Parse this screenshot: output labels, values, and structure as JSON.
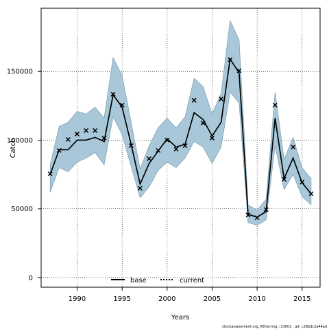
{
  "chart_data": {
    "type": "line",
    "xlabel": "Years",
    "ylabel": "Catch",
    "xlim": [
      1986,
      2017
    ],
    "ylim": [
      -7000,
      196000
    ],
    "x_ticks": [
      1990,
      1995,
      2000,
      2005,
      2010,
      2015
    ],
    "y_ticks": [
      0,
      50000,
      100000,
      150000
    ],
    "grid": "dotted, major ticks",
    "legend_position": "bottom-center",
    "colors": {
      "band": "#a8c8d9",
      "band_edge": "#7a9aaa",
      "line": "#000000",
      "marker": "#000000"
    },
    "x": [
      1987,
      1988,
      1989,
      1990,
      1991,
      1992,
      1993,
      1994,
      1995,
      1996,
      1997,
      1998,
      1999,
      2000,
      2001,
      2002,
      2003,
      2004,
      2005,
      2006,
      2007,
      2008,
      2009,
      2010,
      2011,
      2012,
      2013,
      2014,
      2015,
      2016
    ],
    "series": [
      {
        "name": "base",
        "line_style": "solid",
        "values": [
          75000,
          93000,
          93000,
          100000,
          100000,
          102000,
          99000,
          133000,
          124000,
          97000,
          68000,
          83000,
          92000,
          101000,
          95000,
          97000,
          120000,
          115000,
          103000,
          113000,
          159000,
          149000,
          46000,
          44000,
          48000,
          116000,
          72000,
          87000,
          69000,
          61000
        ]
      },
      {
        "name": "current",
        "line_style": "dotted",
        "values": [
          75000,
          93000,
          93000,
          100000,
          100000,
          102000,
          99000,
          133000,
          124000,
          97000,
          68000,
          83000,
          92000,
          101000,
          95000,
          97000,
          120000,
          115000,
          103000,
          113000,
          159000,
          149000,
          46000,
          44000,
          48000,
          116000,
          72000,
          87000,
          69000,
          61000
        ]
      }
    ],
    "band": {
      "upper": [
        82000,
        110000,
        113000,
        121000,
        119000,
        124000,
        116000,
        160000,
        147000,
        113000,
        79000,
        96000,
        109000,
        116000,
        109000,
        117000,
        145000,
        139000,
        119000,
        134000,
        187000,
        173000,
        53000,
        49000,
        57000,
        135000,
        86000,
        102000,
        80000,
        72000
      ],
      "lower": [
        62000,
        80000,
        77000,
        84000,
        87000,
        91000,
        82000,
        117000,
        104000,
        81000,
        58000,
        66000,
        78000,
        84000,
        80000,
        87000,
        99000,
        95000,
        83000,
        95000,
        135000,
        127000,
        40000,
        38000,
        42000,
        96000,
        64000,
        75000,
        59000,
        53000
      ]
    },
    "observed": {
      "marker": "x",
      "values": [
        75500,
        92500,
        100500,
        104500,
        107000,
        107000,
        101500,
        133500,
        125500,
        96000,
        65000,
        86500,
        92500,
        100000,
        93500,
        96000,
        129000,
        112500,
        101500,
        130000,
        158500,
        150500,
        45500,
        43500,
        49500,
        125500,
        71500,
        95000,
        69500,
        61000
      ]
    }
  },
  "legend": {
    "base": "base",
    "current": "current"
  },
  "footer": "stockassessment.org, KEherring, r13002 , git: c28bdc2a44ad"
}
